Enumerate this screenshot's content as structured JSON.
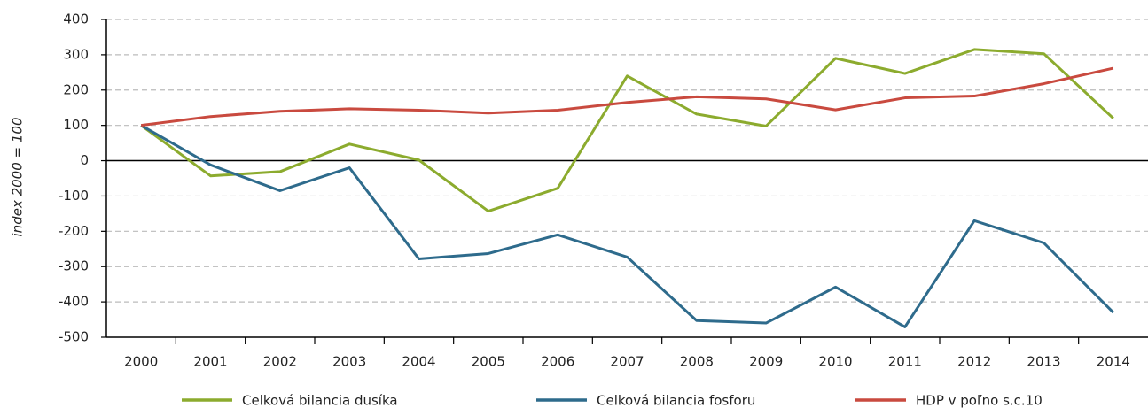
{
  "chart_data": {
    "type": "line",
    "y_label": "index 2000 = 100",
    "categories": [
      "2000",
      "2001",
      "2002",
      "2003",
      "2004",
      "2005",
      "2006",
      "2007",
      "2008",
      "2009",
      "2010",
      "2011",
      "2012",
      "2013",
      "2014"
    ],
    "series": [
      {
        "name": "Celková bilancia dusíka",
        "color": "#8cab2e",
        "values": [
          100,
          -43,
          -31,
          47,
          2,
          -143,
          -78,
          240,
          132,
          98,
          290,
          247,
          315,
          303,
          120
        ]
      },
      {
        "name": "Celková bilancia fosforu",
        "color": "#2e6b8c",
        "values": [
          100,
          -12,
          -85,
          -20,
          -278,
          -263,
          -210,
          -273,
          -453,
          -460,
          -358,
          -471,
          -170,
          -233,
          -430
        ]
      },
      {
        "name": "HDP v poľno s.c.10",
        "color": "#c94a3f",
        "values": [
          100,
          125,
          140,
          147,
          143,
          135,
          143,
          165,
          181,
          175,
          144,
          178,
          183,
          218,
          262
        ]
      }
    ],
    "ylim": [
      -500,
      400
    ],
    "yticks": [
      -500,
      -400,
      -300,
      -200,
      -100,
      0,
      100,
      200,
      300,
      400
    ],
    "grid": true
  }
}
